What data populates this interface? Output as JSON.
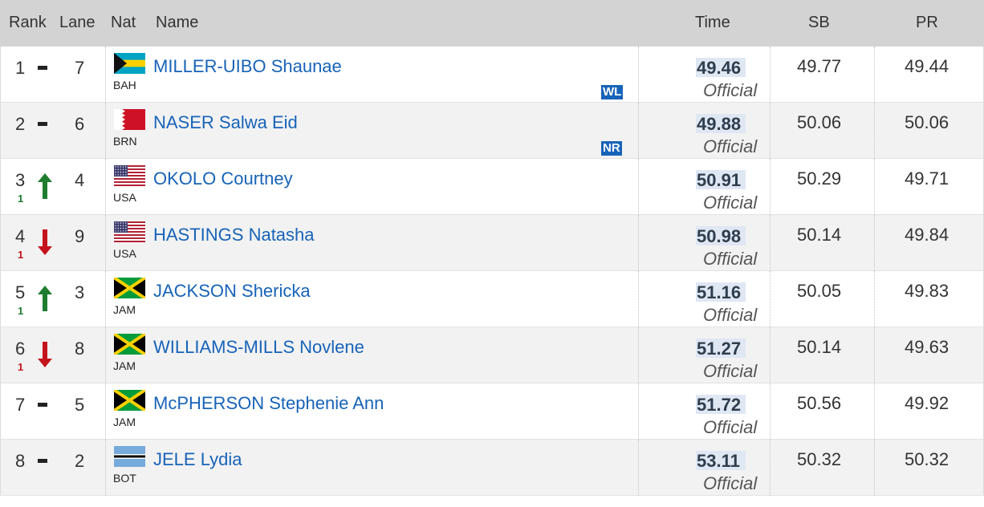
{
  "header": {
    "rank": "Rank",
    "lane": "Lane",
    "nat": "Nat",
    "name": "Name",
    "time": "Time",
    "sb": "SB",
    "pr": "PR"
  },
  "colors": {
    "header_bg": "#d3d3d3",
    "link": "#1763b8",
    "up": "#1e7d2f",
    "down": "#c4141b",
    "badge_bg": "#1763b8",
    "time_highlight": "#dfe7f3"
  },
  "rows": [
    {
      "rank": "1",
      "change": "",
      "direction": "same",
      "lane": "7",
      "flag": "BAH",
      "nat": "BAH",
      "name": "MILLER-UIBO Shaunae",
      "badge": "WL",
      "time": "49.46",
      "status": "Official",
      "sb": "49.77",
      "pr": "49.44"
    },
    {
      "rank": "2",
      "change": "",
      "direction": "same",
      "lane": "6",
      "flag": "BRN",
      "nat": "BRN",
      "name": "NASER Salwa Eid",
      "badge": "NR",
      "time": "49.88",
      "status": "Official",
      "sb": "50.06",
      "pr": "50.06"
    },
    {
      "rank": "3",
      "change": "1",
      "direction": "up",
      "lane": "4",
      "flag": "USA",
      "nat": "USA",
      "name": "OKOLO Courtney",
      "badge": "",
      "time": "50.91",
      "status": "Official",
      "sb": "50.29",
      "pr": "49.71"
    },
    {
      "rank": "4",
      "change": "1",
      "direction": "down",
      "lane": "9",
      "flag": "USA",
      "nat": "USA",
      "name": "HASTINGS Natasha",
      "badge": "",
      "time": "50.98",
      "status": "Official",
      "sb": "50.14",
      "pr": "49.84"
    },
    {
      "rank": "5",
      "change": "1",
      "direction": "up",
      "lane": "3",
      "flag": "JAM",
      "nat": "JAM",
      "name": "JACKSON Shericka",
      "badge": "",
      "time": "51.16",
      "status": "Official",
      "sb": "50.05",
      "pr": "49.83"
    },
    {
      "rank": "6",
      "change": "1",
      "direction": "down",
      "lane": "8",
      "flag": "JAM",
      "nat": "JAM",
      "name": "WILLIAMS-MILLS Novlene",
      "badge": "",
      "time": "51.27",
      "status": "Official",
      "sb": "50.14",
      "pr": "49.63"
    },
    {
      "rank": "7",
      "change": "",
      "direction": "same",
      "lane": "5",
      "flag": "JAM",
      "nat": "JAM",
      "name": "McPHERSON Stephenie Ann",
      "badge": "",
      "time": "51.72",
      "status": "Official",
      "sb": "50.56",
      "pr": "49.92"
    },
    {
      "rank": "8",
      "change": "",
      "direction": "same",
      "lane": "2",
      "flag": "BOT",
      "nat": "BOT",
      "name": "JELE Lydia",
      "badge": "",
      "time": "53.11",
      "status": "Official",
      "sb": "50.32",
      "pr": "50.32"
    }
  ]
}
